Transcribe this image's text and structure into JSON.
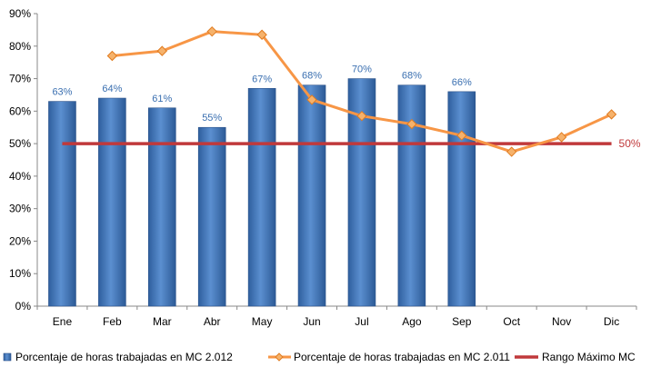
{
  "chart_data": {
    "type": "bar",
    "categories": [
      "Ene",
      "Feb",
      "Mar",
      "Abr",
      "May",
      "Jun",
      "Jul",
      "Ago",
      "Sep",
      "Oct",
      "Nov",
      "Dic"
    ],
    "ylim": [
      0,
      90
    ],
    "ytick_values": [
      0,
      10,
      20,
      30,
      40,
      50,
      60,
      70,
      80,
      90
    ],
    "ytick_labels": [
      "0%",
      "10%",
      "20%",
      "30%",
      "40%",
      "50%",
      "60%",
      "70%",
      "80%",
      "90%"
    ],
    "grid": false,
    "legend_position": "bottom",
    "series": [
      {
        "name": "Porcentaje de horas trabajadas en MC 2.012",
        "type": "bar",
        "color": "#4f81bd",
        "values": [
          63,
          64,
          61,
          55,
          67,
          68,
          70,
          68,
          66,
          null,
          null,
          null
        ],
        "labels": [
          "63%",
          "64%",
          "61%",
          "55%",
          "67%",
          "68%",
          "70%",
          "68%",
          "66%",
          "",
          "",
          ""
        ]
      },
      {
        "name": "Porcentaje de horas trabajadas en MC 2.011",
        "type": "line",
        "color": "#f79646",
        "marker_color": "#f6b26b",
        "values": [
          null,
          77,
          78.5,
          84.5,
          83.5,
          63.5,
          58.5,
          56,
          52.5,
          47.5,
          52,
          59
        ]
      },
      {
        "name": "Rango Máximo MC",
        "type": "line",
        "color": "#c0393b",
        "values": [
          50,
          50,
          50,
          50,
          50,
          50,
          50,
          50,
          50,
          50,
          50,
          50
        ],
        "end_label": "50%"
      }
    ]
  }
}
